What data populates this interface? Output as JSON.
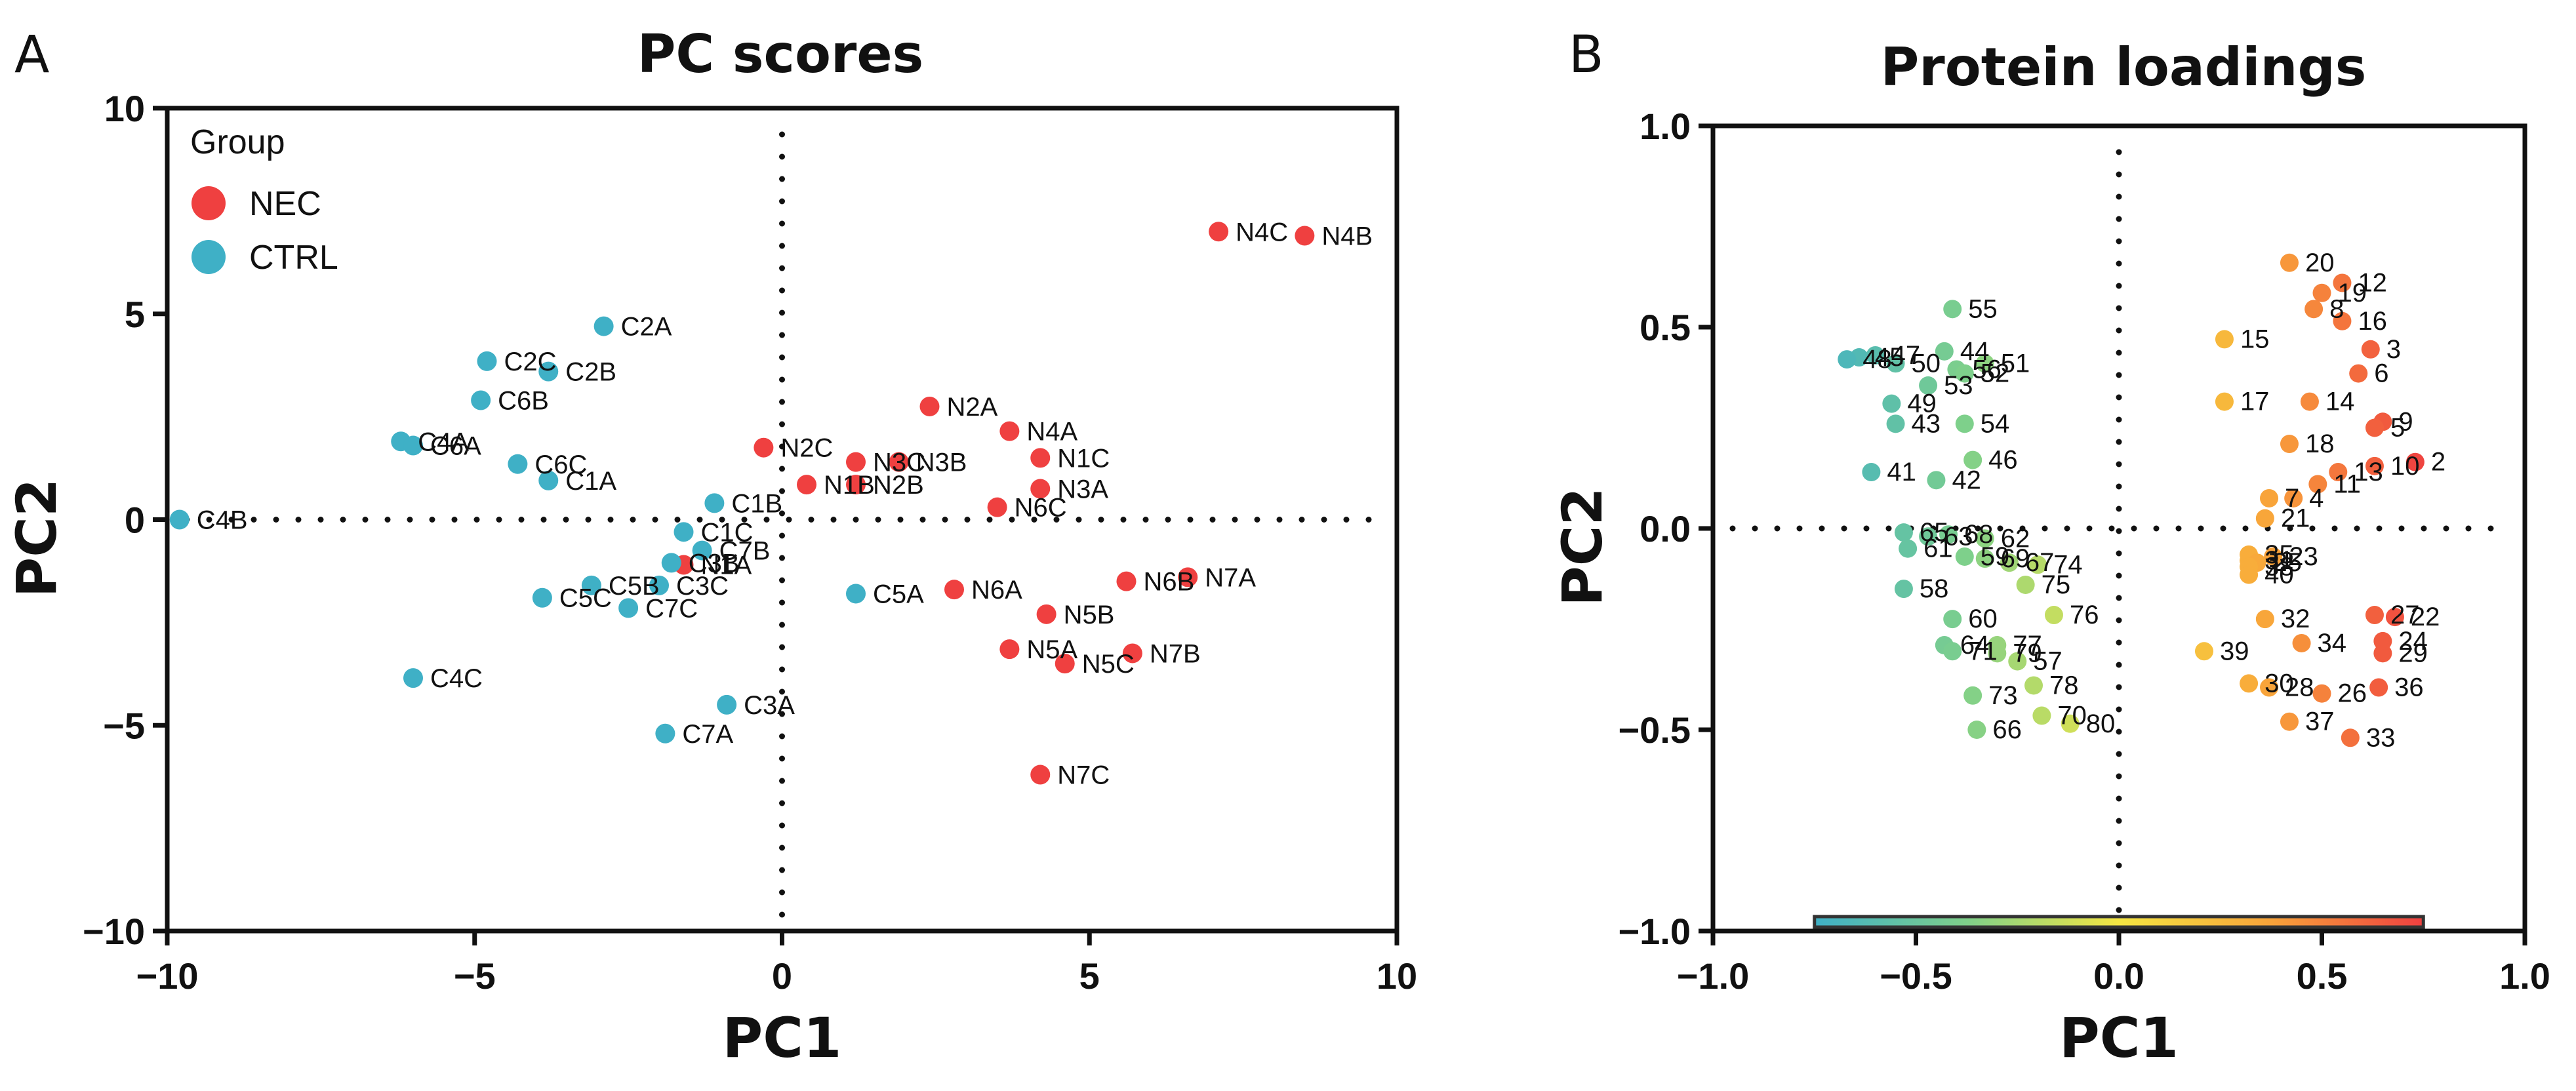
{
  "panels": {
    "a": {
      "letter": "A"
    },
    "b": {
      "letter": "B"
    }
  },
  "chart_data": [
    {
      "type": "scatter",
      "title": "PC scores",
      "xlabel": "PC1",
      "ylabel": "PC2",
      "xlim": [
        -10,
        10
      ],
      "ylim": [
        -10,
        10
      ],
      "xticks": [
        -10,
        -5,
        0,
        5,
        10
      ],
      "yticks": [
        -10,
        -5,
        0,
        5,
        10
      ],
      "xtick_labels": [
        "−10",
        "−5",
        "0",
        "5",
        "10"
      ],
      "ytick_labels": [
        "−10",
        "−5",
        "0",
        "5",
        "10"
      ],
      "reference_lines": "dotted lines at x=0 and y=0",
      "legend": {
        "title": "Group",
        "placement": "top-left",
        "entries": [
          {
            "name": "NEC",
            "color": "#ef4040"
          },
          {
            "name": "CTRL",
            "color": "#3fb0c6"
          }
        ]
      },
      "series": [
        {
          "name": "NEC",
          "color": "#ef4040",
          "points": [
            {
              "label": "N4C",
              "x": 7.1,
              "y": 7.0
            },
            {
              "label": "N4B",
              "x": 8.5,
              "y": 6.9
            },
            {
              "label": "N2A",
              "x": 2.4,
              "y": 2.75
            },
            {
              "label": "N4A",
              "x": 3.7,
              "y": 2.15
            },
            {
              "label": "N1C",
              "x": 4.2,
              "y": 1.5
            },
            {
              "label": "N2C",
              "x": -0.3,
              "y": 1.75
            },
            {
              "label": "N3C",
              "x": 1.2,
              "y": 1.4
            },
            {
              "label": "N3B",
              "x": 1.9,
              "y": 1.4
            },
            {
              "label": "N1B",
              "x": 0.4,
              "y": 0.85
            },
            {
              "label": "N2B",
              "x": 1.2,
              "y": 0.85
            },
            {
              "label": "N3A",
              "x": 4.2,
              "y": 0.75
            },
            {
              "label": "N6C",
              "x": 3.5,
              "y": 0.3
            },
            {
              "label": "N1A",
              "x": -1.6,
              "y": -1.1
            },
            {
              "label": "N6A",
              "x": 2.8,
              "y": -1.7
            },
            {
              "label": "N6B",
              "x": 5.6,
              "y": -1.5
            },
            {
              "label": "N7A",
              "x": 6.6,
              "y": -1.4
            },
            {
              "label": "N5B",
              "x": 4.3,
              "y": -2.3
            },
            {
              "label": "N5A",
              "x": 3.7,
              "y": -3.15
            },
            {
              "label": "N5C",
              "x": 4.6,
              "y": -3.5
            },
            {
              "label": "N7B",
              "x": 5.7,
              "y": -3.25
            },
            {
              "label": "N7C",
              "x": 4.2,
              "y": -6.2
            }
          ]
        },
        {
          "name": "CTRL",
          "color": "#3fb0c6",
          "points": [
            {
              "label": "C2A",
              "x": -2.9,
              "y": 4.7
            },
            {
              "label": "C2C",
              "x": -4.8,
              "y": 3.85
            },
            {
              "label": "C2B",
              "x": -3.8,
              "y": 3.6
            },
            {
              "label": "C6B",
              "x": -4.9,
              "y": 2.9
            },
            {
              "label": "C4A",
              "x": -6.2,
              "y": 1.9
            },
            {
              "label": "C6A",
              "x": -6.0,
              "y": 1.8
            },
            {
              "label": "C6C",
              "x": -4.3,
              "y": 1.35
            },
            {
              "label": "C1A",
              "x": -3.8,
              "y": 0.95
            },
            {
              "label": "C4B",
              "x": -9.8,
              "y": 0.0
            },
            {
              "label": "C1B",
              "x": -1.1,
              "y": 0.4
            },
            {
              "label": "C1C",
              "x": -1.6,
              "y": -0.3
            },
            {
              "label": "C7B",
              "x": -1.3,
              "y": -0.75
            },
            {
              "label": "C3B",
              "x": -1.8,
              "y": -1.05
            },
            {
              "label": "C5B",
              "x": -3.1,
              "y": -1.6
            },
            {
              "label": "C3C",
              "x": -2.0,
              "y": -1.6
            },
            {
              "label": "C5C",
              "x": -3.9,
              "y": -1.9
            },
            {
              "label": "C7C",
              "x": -2.5,
              "y": -2.15
            },
            {
              "label": "C5A",
              "x": 1.2,
              "y": -1.8
            },
            {
              "label": "C4C",
              "x": -6.0,
              "y": -3.85
            },
            {
              "label": "C3A",
              "x": -0.9,
              "y": -4.5
            },
            {
              "label": "C7A",
              "x": -1.9,
              "y": -5.2
            }
          ]
        }
      ]
    },
    {
      "type": "scatter",
      "title": "Protein loadings",
      "xlabel": "PC1",
      "ylabel": "PC2",
      "xlim": [
        -1.0,
        1.0
      ],
      "ylim": [
        -1.0,
        1.0
      ],
      "xticks": [
        -1.0,
        -0.5,
        0.0,
        0.5,
        1.0
      ],
      "yticks": [
        -1.0,
        -0.5,
        0.0,
        0.5,
        1.0
      ],
      "xtick_labels": [
        "−1.0",
        "−0.5",
        "0.0",
        "0.5",
        "1.0"
      ],
      "ytick_labels": [
        "−1.0",
        "−0.5",
        "0.0",
        "0.5",
        "1.0"
      ],
      "reference_lines": "dotted lines at x=0 and y=0",
      "color_mapping": "points colored by PC1 value on a teal–green–yellow–orange–red gradient",
      "colorbar": {
        "range": [
          -0.75,
          0.75
        ],
        "placement": "bottom",
        "colors": [
          "#3fb0c6",
          "#7fd08a",
          "#f5e642",
          "#f8a33a",
          "#ef4040"
        ]
      },
      "points": [
        {
          "label": "20",
          "x": 0.42,
          "y": 0.66
        },
        {
          "label": "12",
          "x": 0.55,
          "y": 0.61
        },
        {
          "label": "19",
          "x": 0.5,
          "y": 0.585
        },
        {
          "label": "8",
          "x": 0.48,
          "y": 0.545
        },
        {
          "label": "16",
          "x": 0.55,
          "y": 0.515
        },
        {
          "label": "15",
          "x": 0.26,
          "y": 0.47
        },
        {
          "label": "3",
          "x": 0.62,
          "y": 0.445
        },
        {
          "label": "6",
          "x": 0.59,
          "y": 0.385
        },
        {
          "label": "17",
          "x": 0.26,
          "y": 0.315
        },
        {
          "label": "14",
          "x": 0.47,
          "y": 0.315
        },
        {
          "label": "9",
          "x": 0.65,
          "y": 0.265
        },
        {
          "label": "5",
          "x": 0.63,
          "y": 0.25
        },
        {
          "label": "18",
          "x": 0.42,
          "y": 0.21
        },
        {
          "label": "2",
          "x": 0.73,
          "y": 0.165
        },
        {
          "label": "10",
          "x": 0.63,
          "y": 0.155
        },
        {
          "label": "13",
          "x": 0.54,
          "y": 0.14
        },
        {
          "label": "11",
          "x": 0.49,
          "y": 0.11
        },
        {
          "label": "4",
          "x": 0.43,
          "y": 0.075
        },
        {
          "label": "7",
          "x": 0.37,
          "y": 0.075
        },
        {
          "label": "21",
          "x": 0.36,
          "y": 0.025
        },
        {
          "label": "35",
          "x": 0.32,
          "y": -0.065
        },
        {
          "label": "23",
          "x": 0.38,
          "y": -0.07
        },
        {
          "label": "31",
          "x": 0.32,
          "y": -0.08
        },
        {
          "label": "25",
          "x": 0.34,
          "y": -0.085
        },
        {
          "label": "38",
          "x": 0.32,
          "y": -0.095
        },
        {
          "label": "40",
          "x": 0.32,
          "y": -0.115
        },
        {
          "label": "27",
          "x": 0.63,
          "y": -0.215
        },
        {
          "label": "22",
          "x": 0.68,
          "y": -0.22
        },
        {
          "label": "32",
          "x": 0.36,
          "y": -0.225
        },
        {
          "label": "24",
          "x": 0.65,
          "y": -0.28
        },
        {
          "label": "29",
          "x": 0.65,
          "y": -0.31
        },
        {
          "label": "34",
          "x": 0.45,
          "y": -0.285
        },
        {
          "label": "39",
          "x": 0.21,
          "y": -0.305
        },
        {
          "label": "30",
          "x": 0.32,
          "y": -0.385
        },
        {
          "label": "28",
          "x": 0.37,
          "y": -0.395
        },
        {
          "label": "36",
          "x": 0.64,
          "y": -0.395
        },
        {
          "label": "26",
          "x": 0.5,
          "y": -0.41
        },
        {
          "label": "37",
          "x": 0.42,
          "y": -0.48
        },
        {
          "label": "33",
          "x": 0.57,
          "y": -0.52
        },
        {
          "label": "55",
          "x": -0.41,
          "y": 0.545
        },
        {
          "label": "47",
          "x": -0.6,
          "y": 0.43
        },
        {
          "label": "45",
          "x": -0.64,
          "y": 0.425
        },
        {
          "label": "44",
          "x": -0.43,
          "y": 0.44
        },
        {
          "label": "48",
          "x": -0.67,
          "y": 0.42
        },
        {
          "label": "50",
          "x": -0.55,
          "y": 0.41
        },
        {
          "label": "51",
          "x": -0.33,
          "y": 0.41
        },
        {
          "label": "56",
          "x": -0.4,
          "y": 0.395
        },
        {
          "label": "52",
          "x": -0.38,
          "y": 0.385
        },
        {
          "label": "53",
          "x": -0.47,
          "y": 0.355
        },
        {
          "label": "49",
          "x": -0.56,
          "y": 0.31
        },
        {
          "label": "54",
          "x": -0.38,
          "y": 0.26
        },
        {
          "label": "43",
          "x": -0.55,
          "y": 0.26
        },
        {
          "label": "46",
          "x": -0.36,
          "y": 0.17
        },
        {
          "label": "42",
          "x": -0.45,
          "y": 0.12
        },
        {
          "label": "41",
          "x": -0.61,
          "y": 0.14
        },
        {
          "label": "65",
          "x": -0.53,
          "y": -0.01
        },
        {
          "label": "63",
          "x": -0.47,
          "y": -0.02
        },
        {
          "label": "68",
          "x": -0.42,
          "y": -0.015
        },
        {
          "label": "62",
          "x": -0.33,
          "y": -0.025
        },
        {
          "label": "61",
          "x": -0.52,
          "y": -0.05
        },
        {
          "label": "59",
          "x": -0.38,
          "y": -0.07
        },
        {
          "label": "69",
          "x": -0.33,
          "y": -0.075
        },
        {
          "label": "67",
          "x": -0.27,
          "y": -0.085
        },
        {
          "label": "74",
          "x": -0.2,
          "y": -0.09
        },
        {
          "label": "75",
          "x": -0.23,
          "y": -0.14
        },
        {
          "label": "58",
          "x": -0.53,
          "y": -0.15
        },
        {
          "label": "60",
          "x": -0.41,
          "y": -0.225
        },
        {
          "label": "76",
          "x": -0.16,
          "y": -0.215
        },
        {
          "label": "64",
          "x": -0.43,
          "y": -0.29
        },
        {
          "label": "71",
          "x": -0.41,
          "y": -0.305
        },
        {
          "label": "77",
          "x": -0.3,
          "y": -0.29
        },
        {
          "label": "79",
          "x": -0.3,
          "y": -0.31
        },
        {
          "label": "57",
          "x": -0.25,
          "y": -0.33
        },
        {
          "label": "78",
          "x": -0.21,
          "y": -0.39
        },
        {
          "label": "73",
          "x": -0.36,
          "y": -0.415
        },
        {
          "label": "70",
          "x": -0.19,
          "y": -0.465
        },
        {
          "label": "80",
          "x": -0.12,
          "y": -0.485
        },
        {
          "label": "66",
          "x": -0.35,
          "y": -0.5
        }
      ]
    }
  ]
}
